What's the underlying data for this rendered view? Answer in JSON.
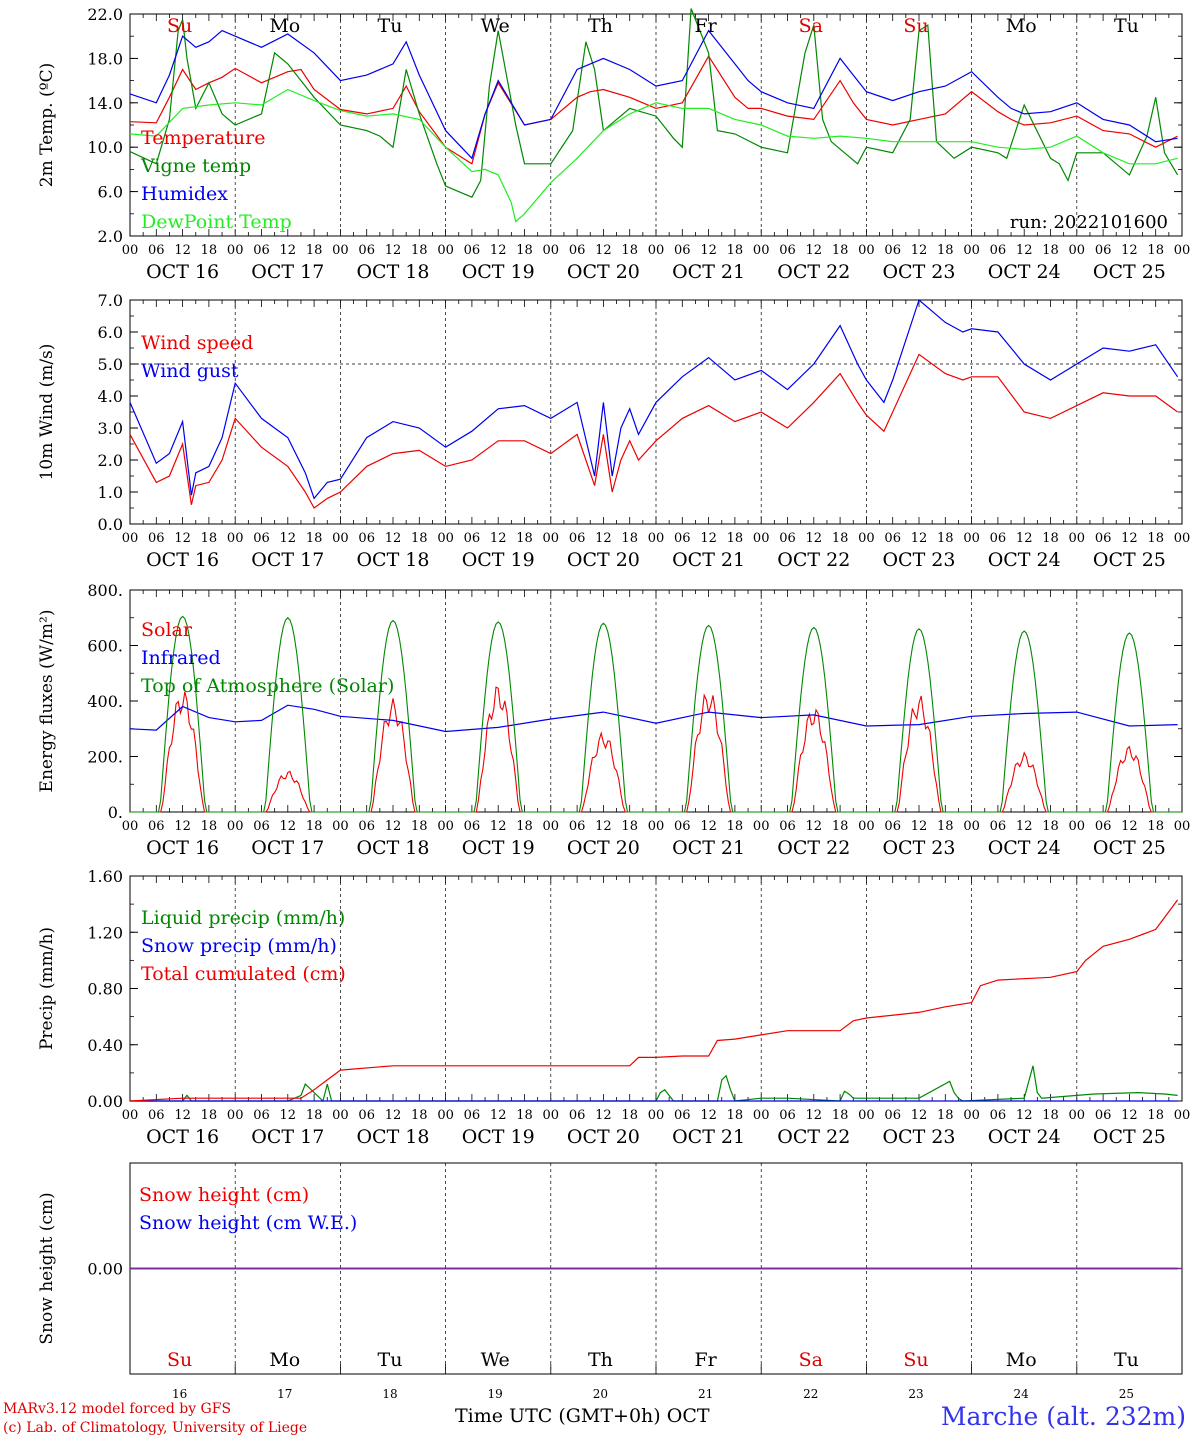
{
  "hours_per_day_ticks": [
    "00",
    "06",
    "12",
    "18"
  ],
  "date_labels": [
    "OCT 16",
    "OCT 17",
    "OCT 18",
    "OCT 19",
    "OCT 20",
    "OCT 21",
    "OCT 22",
    "OCT 23",
    "OCT 24",
    "OCT 25"
  ],
  "weekdays": [
    {
      "label": "Su",
      "color": "#dd0000"
    },
    {
      "label": "Mo",
      "color": "#000000"
    },
    {
      "label": "Tu",
      "color": "#000000"
    },
    {
      "label": "We",
      "color": "#000000"
    },
    {
      "label": "Th",
      "color": "#000000"
    },
    {
      "label": "Fr",
      "color": "#000000"
    },
    {
      "label": "Sa",
      "color": "#dd0000"
    },
    {
      "label": "Su",
      "color": "#dd0000"
    },
    {
      "label": "Mo",
      "color": "#000000"
    },
    {
      "label": "Tu",
      "color": "#000000"
    }
  ],
  "day_numbers": [
    "16",
    "17",
    "18",
    "19",
    "20",
    "21",
    "22",
    "23",
    "24",
    "25"
  ],
  "x_axis_label": "Time UTC (GMT+0h)",
  "month_label": "OCT",
  "credit_line1": "MARv3.12 model forced by GFS",
  "credit_line2": "(c) Lab. of Climatology, University of Liege",
  "station": "Marche (alt. 232m)",
  "run_label": "run: 2022101600",
  "colors": {
    "red": "#ee0000",
    "blue": "#0000ee",
    "green": "#008800",
    "lightgreen": "#22ee22",
    "purple": "#7a2a9a"
  },
  "chart_data": [
    {
      "type": "line",
      "id": "temp",
      "ylabel": "2m Temp. (ºC)",
      "ylim": [
        2,
        22
      ],
      "ticks": [
        "2.0",
        "6.0",
        "10.0",
        "14.0",
        "18.0",
        "22.0"
      ],
      "x_unit": "hours since OCT 16 00 UTC",
      "series": [
        {
          "name": "Temperature",
          "color": "red",
          "x": [
            0,
            6,
            9,
            12,
            15,
            18,
            21,
            24,
            30,
            36,
            39,
            42,
            48,
            54,
            60,
            63,
            66,
            72,
            78,
            81,
            84,
            90,
            96,
            102,
            105,
            108,
            114,
            120,
            126,
            132,
            138,
            141,
            144,
            150,
            156,
            162,
            165,
            168,
            174,
            180,
            186,
            192,
            198,
            201,
            204,
            210,
            216,
            222,
            228,
            234,
            239
          ],
          "y": [
            12.3,
            12.2,
            14.5,
            17.0,
            15.2,
            15.8,
            16.3,
            17.1,
            15.8,
            16.8,
            17.0,
            15.2,
            13.4,
            13.0,
            13.5,
            15.5,
            13.2,
            10.0,
            8.5,
            13.0,
            15.8,
            12.0,
            12.5,
            14.5,
            15.0,
            15.2,
            14.5,
            13.5,
            14.0,
            18.2,
            14.5,
            13.5,
            13.5,
            12.8,
            12.5,
            16.0,
            14.0,
            12.5,
            12.0,
            12.5,
            13.0,
            15.0,
            13.2,
            12.5,
            12.0,
            12.2,
            12.8,
            11.5,
            11.2,
            10.0,
            11.0
          ]
        },
        {
          "name": "Vigne temp",
          "color": "green",
          "x": [
            0,
            6,
            9,
            11,
            12,
            13,
            15,
            18,
            21,
            24,
            30,
            33,
            36,
            39,
            42,
            48,
            54,
            57,
            60,
            63,
            66,
            70,
            72,
            78,
            80,
            82,
            84,
            88,
            90,
            96,
            101,
            104,
            106,
            108,
            114,
            120,
            124,
            126,
            128,
            132,
            134,
            138,
            144,
            150,
            154,
            156,
            158,
            160,
            166,
            168,
            174,
            178,
            180,
            182,
            184,
            188,
            192,
            198,
            200,
            204,
            210,
            212,
            214,
            216,
            222,
            228,
            232,
            234,
            236,
            239
          ],
          "y": [
            9.6,
            8.5,
            12.5,
            20.5,
            21.5,
            18.0,
            13.5,
            15.8,
            13.0,
            12.0,
            13.0,
            18.5,
            17.5,
            16.0,
            14.5,
            12.0,
            11.5,
            11.0,
            10.0,
            17.0,
            13.0,
            8.5,
            6.5,
            5.5,
            7.0,
            15.5,
            20.5,
            12.0,
            8.5,
            8.5,
            11.5,
            19.5,
            17.0,
            11.5,
            13.5,
            12.8,
            10.8,
            10.0,
            22.5,
            18.5,
            11.5,
            11.2,
            10.0,
            9.5,
            18.5,
            21.0,
            12.5,
            10.5,
            8.5,
            10.0,
            9.5,
            12.5,
            20.5,
            21.0,
            10.5,
            9.0,
            10.0,
            9.5,
            9.0,
            13.8,
            9.0,
            8.5,
            7.0,
            9.5,
            9.5,
            7.5,
            11.0,
            14.5,
            9.5,
            7.5
          ]
        },
        {
          "name": "Humidex",
          "color": "blue",
          "x": [
            0,
            6,
            9,
            12,
            15,
            18,
            21,
            24,
            30,
            36,
            42,
            48,
            54,
            60,
            63,
            66,
            72,
            78,
            81,
            84,
            90,
            96,
            102,
            105,
            108,
            114,
            120,
            126,
            132,
            138,
            141,
            144,
            150,
            156,
            162,
            165,
            168,
            174,
            180,
            186,
            192,
            198,
            201,
            204,
            210,
            216,
            222,
            228,
            234,
            239
          ],
          "y": [
            14.8,
            14.0,
            16.5,
            20.0,
            19.0,
            19.5,
            20.5,
            20.0,
            19.0,
            20.2,
            18.5,
            16.0,
            16.5,
            17.5,
            19.5,
            16.5,
            11.5,
            9.0,
            13.0,
            16.0,
            12.0,
            12.5,
            17.0,
            17.5,
            18.0,
            17.0,
            15.5,
            16.0,
            20.5,
            17.5,
            16.0,
            15.0,
            14.0,
            13.5,
            18.0,
            16.5,
            15.0,
            14.2,
            15.0,
            15.5,
            16.8,
            14.5,
            13.5,
            13.0,
            13.2,
            14.0,
            12.5,
            12.0,
            10.5,
            10.8
          ]
        },
        {
          "name": "DewPoint Temp",
          "color": "lightgreen",
          "x": [
            0,
            6,
            12,
            18,
            24,
            30,
            36,
            42,
            48,
            54,
            60,
            66,
            72,
            78,
            81,
            84,
            87,
            88,
            90,
            96,
            102,
            108,
            114,
            120,
            126,
            132,
            138,
            144,
            150,
            156,
            162,
            168,
            174,
            180,
            186,
            192,
            198,
            204,
            210,
            216,
            222,
            228,
            234,
            239
          ],
          "y": [
            11.2,
            11.0,
            13.5,
            13.8,
            14.0,
            13.8,
            15.2,
            14.2,
            13.3,
            12.8,
            13.0,
            12.5,
            10.0,
            7.8,
            8.0,
            7.5,
            5.0,
            3.3,
            4.0,
            6.8,
            9.0,
            11.5,
            13.0,
            14.0,
            13.5,
            13.5,
            12.5,
            12.0,
            11.0,
            10.8,
            11.0,
            10.8,
            10.5,
            10.5,
            10.5,
            10.5,
            10.0,
            9.8,
            10.0,
            11.0,
            9.5,
            8.5,
            8.5,
            9.0
          ]
        }
      ]
    },
    {
      "type": "line",
      "id": "wind",
      "ylabel": "10m Wind (m/s)",
      "ylim": [
        0,
        7
      ],
      "ticks": [
        "0.0",
        "1.0",
        "2.0",
        "3.0",
        "4.0",
        "5.0",
        "6.0",
        "7.0"
      ],
      "ref_line": 5.0,
      "series": [
        {
          "name": "Wind speed",
          "color": "red",
          "x": [
            0,
            6,
            9,
            12,
            14,
            15,
            18,
            21,
            24,
            30,
            36,
            40,
            42,
            45,
            48,
            54,
            60,
            66,
            72,
            78,
            84,
            90,
            96,
            102,
            106,
            108,
            110,
            112,
            114,
            116,
            120,
            126,
            132,
            138,
            144,
            150,
            156,
            162,
            166,
            168,
            172,
            174,
            180,
            186,
            190,
            192,
            198,
            204,
            210,
            216,
            222,
            228,
            234,
            239
          ],
          "y": [
            2.8,
            1.3,
            1.5,
            2.5,
            0.6,
            1.2,
            1.3,
            2.0,
            3.3,
            2.4,
            1.8,
            1.0,
            0.5,
            0.8,
            1.0,
            1.8,
            2.2,
            2.3,
            1.8,
            2.0,
            2.6,
            2.6,
            2.2,
            2.8,
            1.2,
            2.8,
            1.0,
            2.0,
            2.6,
            2.0,
            2.6,
            3.3,
            3.7,
            3.2,
            3.5,
            3.0,
            3.8,
            4.7,
            3.8,
            3.4,
            2.9,
            3.5,
            5.3,
            4.7,
            4.5,
            4.6,
            4.6,
            3.5,
            3.3,
            3.7,
            4.1,
            4.0,
            4.0,
            3.5
          ]
        },
        {
          "name": "Wind gust",
          "color": "blue",
          "x": [
            0,
            6,
            9,
            12,
            14,
            15,
            18,
            21,
            24,
            30,
            36,
            40,
            42,
            45,
            48,
            54,
            60,
            66,
            72,
            78,
            84,
            90,
            96,
            102,
            106,
            108,
            110,
            112,
            114,
            116,
            120,
            126,
            132,
            138,
            144,
            150,
            156,
            162,
            166,
            168,
            172,
            174,
            180,
            186,
            190,
            192,
            198,
            204,
            210,
            216,
            222,
            228,
            234,
            239
          ],
          "y": [
            3.8,
            1.9,
            2.2,
            3.2,
            0.9,
            1.6,
            1.8,
            2.7,
            4.4,
            3.3,
            2.7,
            1.6,
            0.8,
            1.3,
            1.4,
            2.7,
            3.2,
            3.0,
            2.4,
            2.9,
            3.6,
            3.7,
            3.3,
            3.8,
            1.5,
            3.8,
            1.5,
            3.0,
            3.6,
            2.8,
            3.8,
            4.6,
            5.2,
            4.5,
            4.8,
            4.2,
            5.0,
            6.2,
            5.0,
            4.5,
            3.8,
            4.5,
            7.0,
            6.3,
            6.0,
            6.1,
            6.0,
            5.0,
            4.5,
            5.0,
            5.5,
            5.4,
            5.6,
            4.6
          ]
        }
      ]
    },
    {
      "type": "line",
      "id": "flux",
      "ylabel": "Energy fluxes (W/m²)",
      "ylim": [
        0,
        800
      ],
      "ticks": [
        "0.",
        "200.",
        "400.",
        "600.",
        "800."
      ],
      "series": [
        {
          "name": "Solar",
          "color": "red",
          "peaks": [
            445,
            150,
            410,
            465,
            290,
            445,
            385,
            425,
            215,
            240
          ]
        },
        {
          "name": "Infrared",
          "color": "blue",
          "x": [
            0,
            6,
            12,
            18,
            24,
            30,
            36,
            42,
            48,
            60,
            72,
            84,
            96,
            108,
            120,
            132,
            144,
            156,
            168,
            180,
            192,
            204,
            216,
            228,
            239
          ],
          "y": [
            300,
            295,
            380,
            340,
            325,
            330,
            385,
            370,
            345,
            330,
            290,
            305,
            335,
            360,
            320,
            360,
            340,
            350,
            310,
            315,
            345,
            355,
            360,
            310,
            315
          ]
        },
        {
          "name": "Top of Atmosphere (Solar)",
          "color": "green",
          "peaks": [
            705,
            700,
            690,
            685,
            680,
            672,
            665,
            660,
            652,
            645
          ]
        }
      ]
    },
    {
      "type": "line",
      "id": "precip",
      "ylabel": "Precip (mm/h)",
      "ylim": [
        0,
        1.6
      ],
      "ticks": [
        "0.00",
        "0.40",
        "0.80",
        "1.20",
        "1.60"
      ],
      "series": [
        {
          "name": "Liquid precip (mm/h)",
          "color": "green",
          "x": [
            0,
            12,
            13,
            14,
            36,
            39,
            40,
            44,
            45,
            46,
            120,
            121,
            122,
            123,
            124,
            134,
            135,
            136,
            137,
            138,
            144,
            150,
            162,
            163,
            164,
            165,
            180,
            187,
            188,
            189,
            190,
            204,
            206,
            207,
            208,
            216,
            220,
            230,
            236,
            239
          ],
          "y": [
            0,
            0,
            0.04,
            0,
            0,
            0.04,
            0.12,
            0,
            0.12,
            0,
            0,
            0.06,
            0.08,
            0.04,
            0,
            0,
            0.15,
            0.18,
            0.08,
            0,
            0.02,
            0.02,
            0,
            0.07,
            0.05,
            0.02,
            0.02,
            0.14,
            0.06,
            0.02,
            0,
            0.02,
            0.25,
            0.06,
            0.02,
            0.04,
            0.05,
            0.06,
            0.05,
            0.04
          ]
        },
        {
          "name": "Snow precip (mm/h)",
          "color": "blue",
          "x": [
            0,
            239
          ],
          "y": [
            0,
            0
          ]
        },
        {
          "name": "Total cumulated (cm)",
          "color": "red",
          "x": [
            0,
            12,
            39,
            42,
            45,
            48,
            60,
            96,
            114,
            116,
            120,
            126,
            132,
            134,
            138,
            144,
            150,
            162,
            165,
            168,
            180,
            186,
            192,
            194,
            198,
            204,
            210,
            216,
            218,
            222,
            228,
            234,
            239
          ],
          "y": [
            0,
            0.02,
            0.02,
            0.08,
            0.15,
            0.22,
            0.25,
            0.25,
            0.25,
            0.31,
            0.31,
            0.32,
            0.32,
            0.43,
            0.44,
            0.47,
            0.5,
            0.5,
            0.57,
            0.59,
            0.63,
            0.67,
            0.7,
            0.82,
            0.86,
            0.87,
            0.88,
            0.92,
            1.0,
            1.1,
            1.15,
            1.22,
            1.43
          ]
        }
      ]
    },
    {
      "type": "line",
      "id": "snow",
      "ylabel": "Snow height (cm)",
      "ylim": [
        -1,
        1
      ],
      "ticks": [
        "0.00"
      ],
      "series": [
        {
          "name": "Snow height (cm)",
          "color": "red",
          "x": [
            0,
            239
          ],
          "y": [
            0,
            0
          ]
        },
        {
          "name": "Snow height (cm W.E.)",
          "color": "blue",
          "x": [
            0,
            239
          ],
          "y": [
            0,
            0
          ]
        }
      ]
    }
  ]
}
